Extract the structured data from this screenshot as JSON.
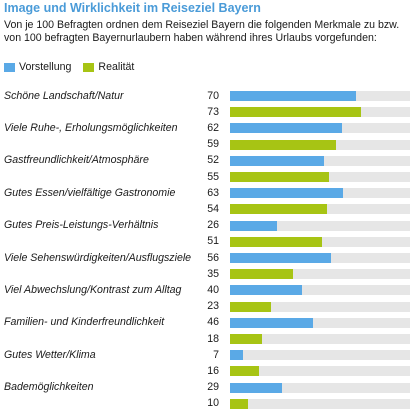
{
  "title": "Image und Wirklichkeit im Reiseziel Bayern",
  "subtitle": "Von je 100 Befragten ordnen dem Reiseziel Bayern die folgenden Merkmale zu bzw. von 100 befragten Bayernurlaubern haben während ihres Urlaubs vorgefunden:",
  "colors": {
    "vorstellung": "#5aa9e6",
    "realitaet": "#a7c414",
    "track": "#e6e6e6"
  },
  "chart_data": {
    "type": "bar",
    "orientation": "horizontal",
    "xlim": [
      0,
      100
    ],
    "legend_position": "top-left",
    "categories": [
      "Schöne Landschaft/Natur",
      "Viele Ruhe-, Erholungsmöglichkeiten",
      "Gastfreundlichkeit/Atmosphäre",
      "Gutes Essen/vielfältige Gastronomie",
      "Gutes Preis-Leistungs-Verhältnis",
      "Viele Sehenswürdigkeiten/Ausflugsziele",
      "Viel Abwechslung/Kontrast zum Alltag",
      "Familien- und Kinderfreundlichkeit",
      "Gutes Wetter/Klima",
      "Bademöglichkeiten"
    ],
    "series": [
      {
        "name": "Vorstellung",
        "values": [
          70,
          62,
          52,
          63,
          26,
          56,
          40,
          46,
          7,
          29
        ]
      },
      {
        "name": "Realität",
        "values": [
          73,
          59,
          55,
          54,
          51,
          35,
          23,
          18,
          16,
          10
        ]
      }
    ]
  }
}
